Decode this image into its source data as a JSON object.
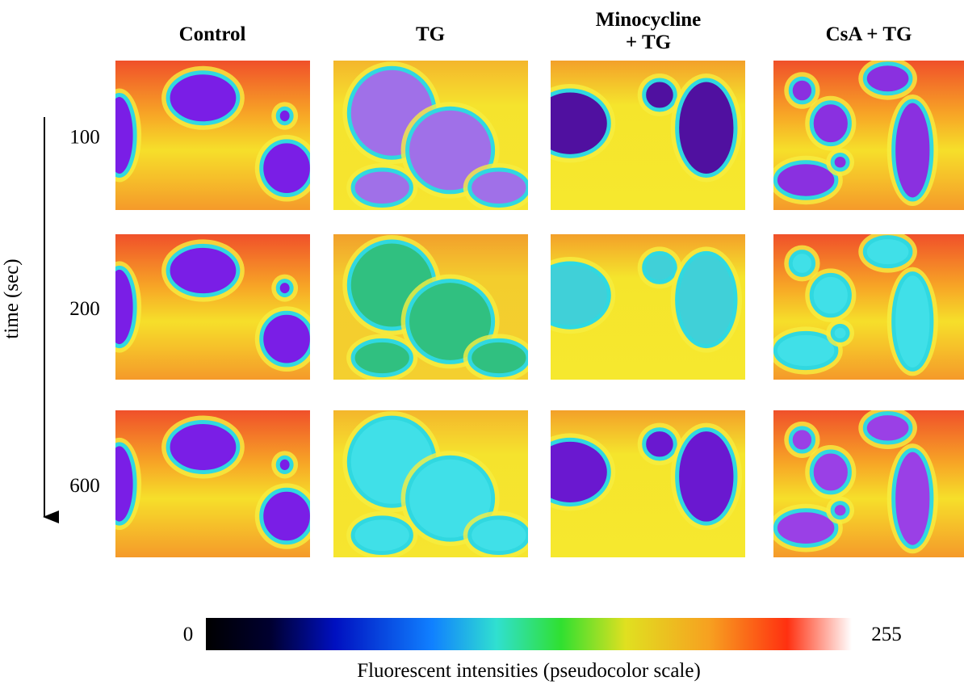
{
  "figure": {
    "columns": [
      [
        "Control"
      ],
      [
        "TG"
      ],
      [
        "Minocycline",
        "+ TG"
      ],
      [
        "CsA + TG"
      ]
    ],
    "rows": [
      100,
      200,
      600
    ],
    "axis_label": "time (sec)",
    "colorbar": {
      "min": 0,
      "max": 255,
      "caption": "Fluorescent intensities (pseudocolor scale)"
    }
  }
}
